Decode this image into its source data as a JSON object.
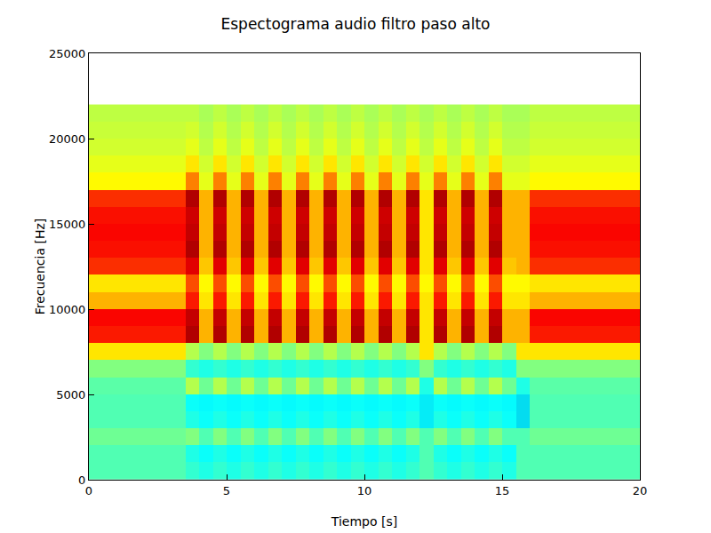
{
  "chart_data": {
    "type": "heatmap",
    "title": "Espectograma audio filtro paso alto",
    "x_label": "Tiempo [s]",
    "y_label": "Frecuencia [Hz]",
    "xlim": [
      0,
      20
    ],
    "xticks": [
      0,
      5,
      10,
      15,
      20
    ],
    "ylim": [
      0,
      25000
    ],
    "yticks": [
      0,
      5000,
      10000,
      15000,
      20000,
      25000
    ],
    "grid": false,
    "zlim": [
      0,
      10
    ],
    "x": [
      0.25,
      0.75,
      1.25,
      1.75,
      2.25,
      2.75,
      3.25,
      3.75,
      4.25,
      4.75,
      5.25,
      5.75,
      6.25,
      6.75,
      7.25,
      7.75,
      8.25,
      8.75,
      9.25,
      9.75,
      10.25,
      10.75,
      11.25,
      11.75,
      12.25,
      12.75,
      13.25,
      13.75,
      14.25,
      14.75,
      15.25,
      15.75,
      16.25,
      16.75,
      17.25,
      17.75,
      18.25,
      18.75,
      19.25,
      19.75
    ],
    "y": [
      500,
      1500,
      2500,
      3500,
      4500,
      5500,
      6500,
      7500,
      8500,
      9500,
      10500,
      11500,
      12500,
      13500,
      14500,
      15500,
      16500,
      17500,
      18500,
      19500,
      20500,
      21500
    ],
    "z": [
      [
        4.5,
        4.5,
        4.5,
        4.5,
        4.5,
        4.5,
        4.5,
        4.2,
        4,
        4.2,
        4,
        4.2,
        4,
        4.2,
        4,
        4.2,
        4,
        4.2,
        4,
        4.2,
        4,
        4.2,
        4,
        4.2,
        4.5,
        4.2,
        4,
        4.2,
        4,
        4.2,
        4,
        4.5,
        4.5,
        4.5,
        4.5,
        4.5,
        4.5,
        4.5,
        4.5,
        4.5
      ],
      [
        4.5,
        4.5,
        4.5,
        4.5,
        4.5,
        4.5,
        4.5,
        4,
        3.8,
        4,
        3.8,
        4,
        3.8,
        4,
        3.8,
        4,
        3.8,
        4,
        3.8,
        4,
        3.8,
        4,
        3.8,
        4,
        4.5,
        4,
        3.8,
        4,
        3.8,
        4,
        3.8,
        4.5,
        4.5,
        4.5,
        4.5,
        4.5,
        4.5,
        4.5,
        4.5,
        4.5
      ],
      [
        4.8,
        4.8,
        4.8,
        4.8,
        4.8,
        4.8,
        4.8,
        5,
        4.5,
        5,
        4.5,
        5,
        4.5,
        5,
        4.5,
        5,
        4.5,
        5,
        4.5,
        5,
        4.5,
        5,
        4.5,
        5,
        4.5,
        5,
        4.5,
        5,
        4.5,
        5,
        4.5,
        4.5,
        4.8,
        4.8,
        4.8,
        4.8,
        4.8,
        4.8,
        4.8,
        4.8
      ],
      [
        4.5,
        4.5,
        4.5,
        4.5,
        4.5,
        4.5,
        4.5,
        4,
        3.8,
        4,
        3.8,
        4,
        3.8,
        4,
        3.8,
        4,
        3.8,
        4,
        3.8,
        4,
        3.8,
        4,
        3.8,
        4,
        3.5,
        4,
        3.8,
        4,
        3.8,
        4,
        3.8,
        3.3,
        4.5,
        4.5,
        4.5,
        4.5,
        4.5,
        4.5,
        4.5,
        4.5
      ],
      [
        4.5,
        4.5,
        4.5,
        4.5,
        4.5,
        4.5,
        4.5,
        3.8,
        3.7,
        3.8,
        3.7,
        3.8,
        3.7,
        3.8,
        3.7,
        3.8,
        3.7,
        3.8,
        3.7,
        3.8,
        3.7,
        3.8,
        3.7,
        3.8,
        3.5,
        3.8,
        3.7,
        3.8,
        3.7,
        3.8,
        3.7,
        3.3,
        4.5,
        4.5,
        4.5,
        4.5,
        4.5,
        4.5,
        4.5,
        4.5
      ],
      [
        4.6,
        4.6,
        4.6,
        4.6,
        4.6,
        4.6,
        4.6,
        5.5,
        4.8,
        5.5,
        4.8,
        5.5,
        4.8,
        5.5,
        4.8,
        5.5,
        4.8,
        5.5,
        4.8,
        5.5,
        4.8,
        5.5,
        4.8,
        5.5,
        4,
        5.5,
        4.8,
        5.5,
        4.8,
        5.5,
        4.8,
        4,
        4.6,
        4.6,
        4.6,
        4.6,
        4.6,
        4.6,
        4.6,
        4.6
      ],
      [
        5,
        5,
        5,
        5,
        5,
        5,
        5,
        4.2,
        4,
        4.2,
        4,
        4.2,
        4,
        4.2,
        4,
        4.2,
        4,
        4.2,
        4,
        4.2,
        4,
        4.2,
        4,
        4.2,
        5,
        4.2,
        4,
        4.2,
        4,
        4.2,
        4,
        5,
        5,
        5,
        5,
        5,
        5,
        5,
        5,
        5
      ],
      [
        6.5,
        6.5,
        6.5,
        6.5,
        6.5,
        6.5,
        6.5,
        5.5,
        5,
        5.5,
        5,
        5.5,
        5,
        5.5,
        5,
        5.5,
        5,
        5.5,
        5,
        5.5,
        5,
        5.5,
        5,
        5.5,
        6.5,
        5.5,
        5,
        5.5,
        5,
        5.5,
        5,
        6.5,
        6.5,
        6.5,
        6.5,
        6.5,
        6.5,
        6.5,
        6.5,
        6.5
      ],
      [
        8.5,
        8.5,
        8.5,
        8.5,
        8.5,
        8.5,
        8.5,
        9.5,
        7,
        9.5,
        7,
        9.5,
        7,
        9.5,
        7,
        9.5,
        7,
        9.5,
        7,
        9.5,
        7,
        9.5,
        7,
        9.5,
        6.5,
        9.5,
        7,
        9.5,
        7,
        9.5,
        7,
        7,
        8.5,
        8.5,
        8.5,
        8.5,
        8.5,
        8.5,
        8.5,
        8.5
      ],
      [
        8.7,
        8.7,
        8.7,
        8.7,
        8.7,
        8.7,
        8.7,
        9.3,
        7,
        9.3,
        7,
        9.3,
        7,
        9.3,
        7,
        9.3,
        7,
        9.3,
        7,
        9.3,
        7,
        9.3,
        7,
        9.3,
        6.5,
        9.3,
        7,
        9.3,
        7,
        9.3,
        7,
        7,
        8.7,
        8.7,
        8.7,
        8.7,
        8.7,
        8.7,
        8.7,
        8.7
      ],
      [
        7,
        7,
        7,
        7,
        7,
        7,
        7,
        8.5,
        6.5,
        8.5,
        6.5,
        8.5,
        6.5,
        8.5,
        6.5,
        8.5,
        6.5,
        8.5,
        6.5,
        8.5,
        6.5,
        8.5,
        6.5,
        8.5,
        6.5,
        8.5,
        6.5,
        8.5,
        6.5,
        8.5,
        6.5,
        6.5,
        7,
        7,
        7,
        7,
        7,
        7,
        7,
        7
      ],
      [
        6.5,
        6.5,
        6.5,
        6.5,
        6.5,
        6.5,
        6.5,
        8,
        6.3,
        8,
        6.3,
        8,
        6.3,
        8,
        6.3,
        8,
        6.3,
        8,
        6.3,
        8,
        6.3,
        8,
        6.3,
        8,
        6.3,
        8,
        6.3,
        8,
        6.3,
        8,
        6.3,
        6.3,
        6.5,
        6.5,
        6.5,
        6.5,
        6.5,
        6.5,
        6.5,
        6.5
      ],
      [
        8.3,
        8.3,
        8.3,
        8.3,
        8.3,
        8.3,
        8.3,
        9,
        6.8,
        9,
        6.8,
        9,
        6.8,
        9,
        6.8,
        9,
        6.8,
        9,
        6.8,
        9,
        6.8,
        9,
        6.8,
        9,
        6.5,
        9,
        6.8,
        9,
        6.8,
        9,
        6.8,
        7,
        8.3,
        8.3,
        8.3,
        8.3,
        8.3,
        8.3,
        8.3,
        8.3
      ],
      [
        8.6,
        8.6,
        8.6,
        8.6,
        8.6,
        8.6,
        8.6,
        9.5,
        7,
        9.5,
        7,
        9.5,
        7,
        9.5,
        7,
        9.5,
        7,
        9.5,
        7,
        9.5,
        7,
        9.5,
        7,
        9.5,
        6.5,
        9.5,
        7,
        9.5,
        7,
        9.5,
        7,
        7,
        8.6,
        8.6,
        8.6,
        8.6,
        8.6,
        8.6,
        8.6,
        8.6
      ],
      [
        8.7,
        8.7,
        8.7,
        8.7,
        8.7,
        8.7,
        8.7,
        9.3,
        7,
        9.3,
        7,
        9.3,
        7,
        9.3,
        7,
        9.3,
        7,
        9.3,
        7,
        9.3,
        7,
        9.3,
        7,
        9.3,
        6.5,
        9.3,
        7,
        9.3,
        7,
        9.3,
        7,
        7,
        8.7,
        8.7,
        8.7,
        8.7,
        8.7,
        8.7,
        8.7,
        8.7
      ],
      [
        8.6,
        8.6,
        8.6,
        8.6,
        8.6,
        8.6,
        8.6,
        9.2,
        7,
        9.2,
        7,
        9.2,
        7,
        9.2,
        7,
        9.2,
        7,
        9.2,
        7,
        9.2,
        7,
        9.2,
        7,
        9.2,
        6.5,
        9.2,
        7,
        9.2,
        7,
        9.2,
        7,
        7,
        8.6,
        8.6,
        8.6,
        8.6,
        8.6,
        8.6,
        8.6,
        8.6
      ],
      [
        8.3,
        8.3,
        8.3,
        8.3,
        8.3,
        8.3,
        8.3,
        9.5,
        7,
        9.5,
        7,
        9.5,
        7,
        9.5,
        7,
        9.5,
        7,
        9.5,
        7,
        9.5,
        7,
        9.5,
        7,
        9.5,
        6.5,
        9.5,
        7,
        9.5,
        7,
        9.5,
        7,
        7,
        8.3,
        8.3,
        8.3,
        8.3,
        8.3,
        8.3,
        8.3,
        8.3
      ],
      [
        6.3,
        6.3,
        6.3,
        6.3,
        6.3,
        6.3,
        6.3,
        7.5,
        6,
        7.5,
        6,
        7.5,
        6,
        7.5,
        6,
        7.5,
        6,
        7.5,
        6,
        7.5,
        6,
        7.5,
        6,
        7.5,
        6,
        7.5,
        6,
        7.5,
        6,
        7.5,
        6,
        6,
        6.3,
        6.3,
        6.3,
        6.3,
        6.3,
        6.3,
        6.3,
        6.3
      ],
      [
        6,
        6,
        6,
        6,
        6,
        6,
        6,
        6.5,
        5.8,
        6.5,
        5.8,
        6.5,
        5.8,
        6.5,
        5.8,
        6.5,
        5.8,
        6.5,
        5.8,
        6.5,
        5.8,
        6.5,
        5.8,
        6.5,
        5.8,
        6.5,
        5.8,
        6.5,
        5.8,
        6.5,
        5.8,
        5.8,
        6,
        6,
        6,
        6,
        6,
        6,
        6,
        6
      ],
      [
        5.8,
        5.8,
        5.8,
        5.8,
        5.8,
        5.8,
        5.8,
        6,
        5.6,
        6,
        5.6,
        6,
        5.6,
        6,
        5.6,
        6,
        5.6,
        6,
        5.6,
        6,
        5.6,
        6,
        5.6,
        6,
        5.6,
        6,
        5.6,
        6,
        5.6,
        6,
        5.6,
        5.6,
        5.8,
        5.8,
        5.8,
        5.8,
        5.8,
        5.8,
        5.8,
        5.8
      ],
      [
        5.7,
        5.7,
        5.7,
        5.7,
        5.7,
        5.7,
        5.7,
        5.8,
        5.5,
        5.8,
        5.5,
        5.8,
        5.5,
        5.8,
        5.5,
        5.8,
        5.5,
        5.8,
        5.5,
        5.8,
        5.5,
        5.8,
        5.5,
        5.8,
        5.5,
        5.8,
        5.5,
        5.8,
        5.5,
        5.8,
        5.5,
        5.5,
        5.7,
        5.7,
        5.7,
        5.7,
        5.7,
        5.7,
        5.7,
        5.7
      ],
      [
        5.6,
        5.6,
        5.6,
        5.6,
        5.6,
        5.6,
        5.6,
        5.6,
        5.4,
        5.6,
        5.4,
        5.6,
        5.4,
        5.6,
        5.4,
        5.6,
        5.4,
        5.6,
        5.4,
        5.6,
        5.4,
        5.6,
        5.4,
        5.6,
        5.4,
        5.6,
        5.4,
        5.6,
        5.4,
        5.6,
        5.4,
        5.4,
        5.6,
        5.6,
        5.6,
        5.6,
        5.6,
        5.6,
        5.6,
        5.6
      ]
    ]
  }
}
